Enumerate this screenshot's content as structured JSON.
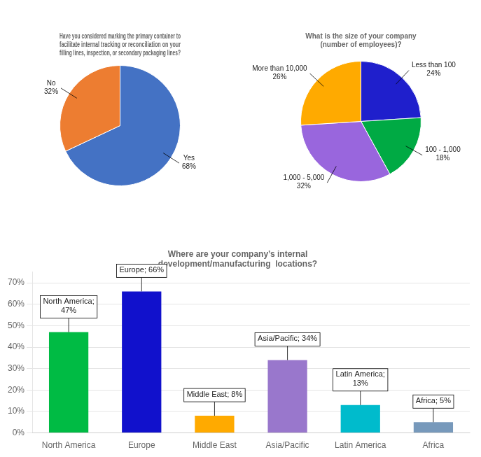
{
  "chart_data": [
    {
      "type": "pie",
      "title": "Have you considered marking the primary container to\nfacilitate internal tracking or reconciliation on your\nfilling lines, inspection, or secondary packaging lines?",
      "categories": [
        "Yes",
        "No"
      ],
      "values": [
        68,
        32
      ],
      "value_labels": [
        "68%",
        "32%"
      ],
      "colors": [
        "#4472C4",
        "#ED7D31"
      ],
      "data_labels": true
    },
    {
      "type": "pie",
      "title": "What is the size of your company\n(number of employees)?",
      "categories": [
        "Less than 100",
        "100 - 1,000",
        "1,000 - 5,000",
        "More than 10,000"
      ],
      "values": [
        24,
        18,
        32,
        26
      ],
      "value_labels": [
        "24%",
        "18%",
        "32%",
        "26%"
      ],
      "colors": [
        "#1F1FCC",
        "#00AA44",
        "#9966DD",
        "#FFAA00"
      ],
      "data_labels": true
    },
    {
      "type": "bar",
      "title": "Where are your company’s internal\ndevelopment/manufacturing  locations?",
      "categories": [
        "North America",
        "Europe",
        "Middle East",
        "Asia/Pacific",
        "Latin America",
        "Africa"
      ],
      "values": [
        47,
        66,
        8,
        34,
        13,
        5
      ],
      "value_labels": [
        "North America;\n47%",
        "Europe; 66%",
        "Middle East; 8%",
        "Asia/Pacific; 34%",
        "Latin America;\n13%",
        "Africa; 5%"
      ],
      "colors": [
        "#00BB44",
        "#1111CC",
        "#FFAA00",
        "#9977CC",
        "#00BBCC",
        "#7799BB"
      ],
      "ylim": [
        0,
        75
      ],
      "yticks": [
        {
          "value": 0,
          "label": "0%"
        },
        {
          "value": 10,
          "label": "10%"
        },
        {
          "value": 20,
          "label": "20%"
        },
        {
          "value": 30,
          "label": "30%"
        },
        {
          "value": 40,
          "label": "40%"
        },
        {
          "value": 50,
          "label": "50%"
        },
        {
          "value": 60,
          "label": "60%"
        },
        {
          "value": 70,
          "label": "70%"
        }
      ],
      "grid": true,
      "data_labels": true
    }
  ]
}
